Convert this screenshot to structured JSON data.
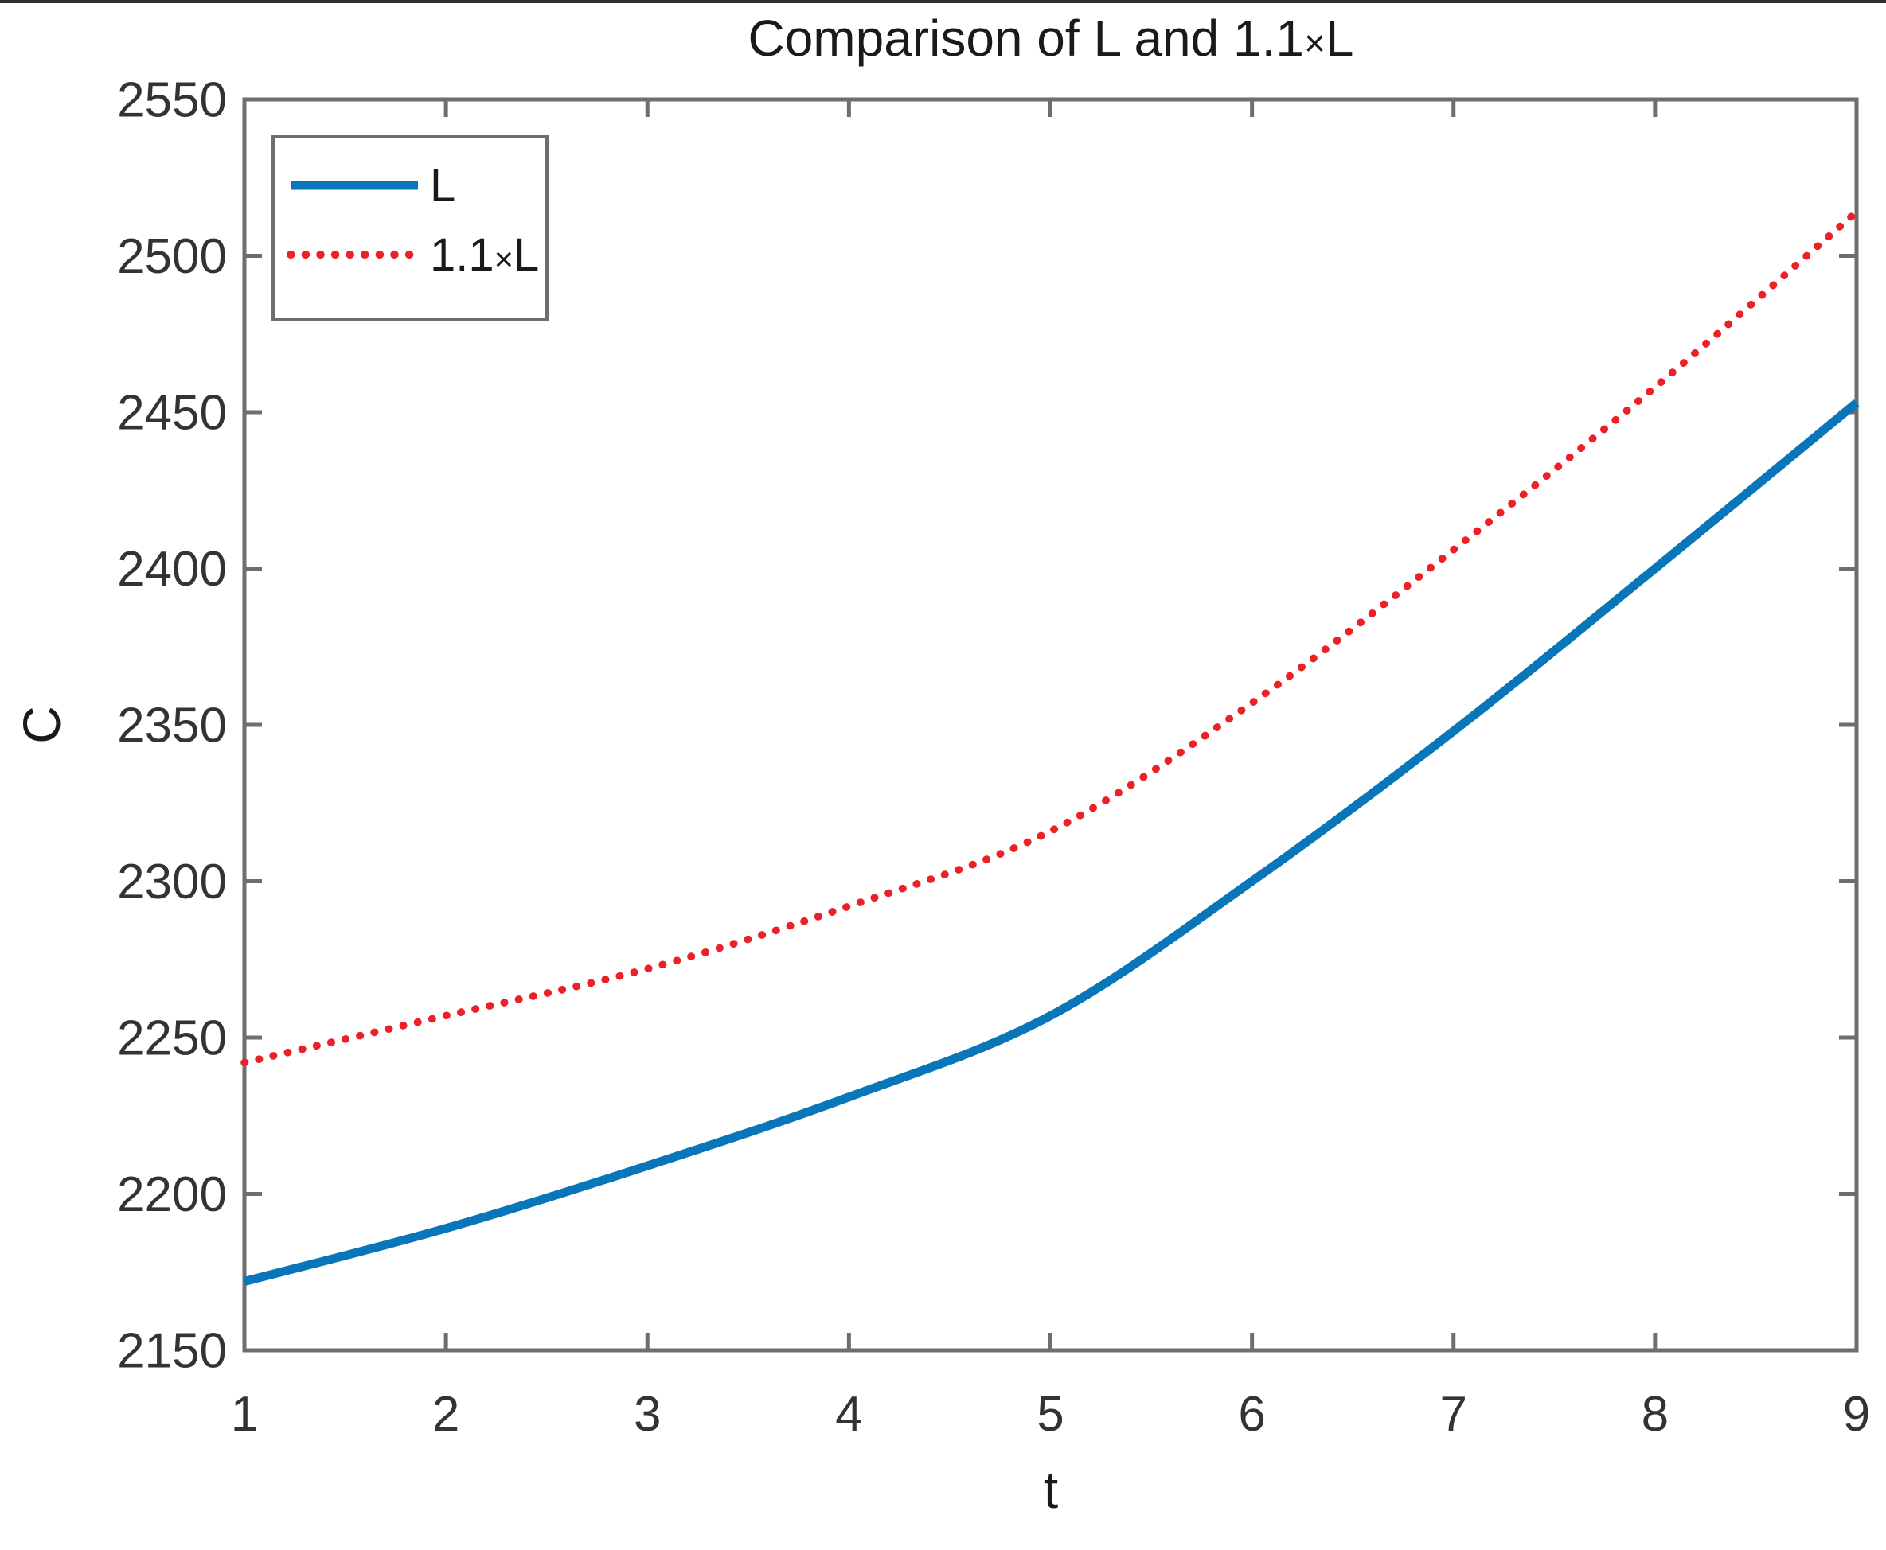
{
  "chart_data": {
    "type": "line",
    "title": "Comparison of L and 1.1×L",
    "xlabel": "t",
    "ylabel": "C",
    "x": [
      1,
      2,
      3,
      4,
      5,
      6,
      7,
      8,
      9
    ],
    "xlim": [
      1,
      9
    ],
    "ylim": [
      2150,
      2550
    ],
    "x_ticks": [
      1,
      2,
      3,
      4,
      5,
      6,
      7,
      8,
      9
    ],
    "y_ticks": [
      2150,
      2200,
      2250,
      2300,
      2350,
      2400,
      2450,
      2500,
      2550
    ],
    "grid": false,
    "legend_position": "top-left",
    "series": [
      {
        "name": "L",
        "color": "#0a76ba",
        "style": "solid",
        "values": [
          2172,
          2189,
          2209,
          2231,
          2257,
          2300,
          2348,
          2400,
          2453
        ]
      },
      {
        "name": "1.1×L",
        "color": "#ec2127",
        "style": "dotted",
        "values": [
          2242,
          2257,
          2272,
          2292,
          2316,
          2357,
          2406,
          2458,
          2514
        ]
      }
    ]
  },
  "colors": {
    "axis": "#6e6e6e",
    "tick_text": "#333333",
    "title_text": "#1a1a1a",
    "top_border": "#2f2f2f"
  }
}
